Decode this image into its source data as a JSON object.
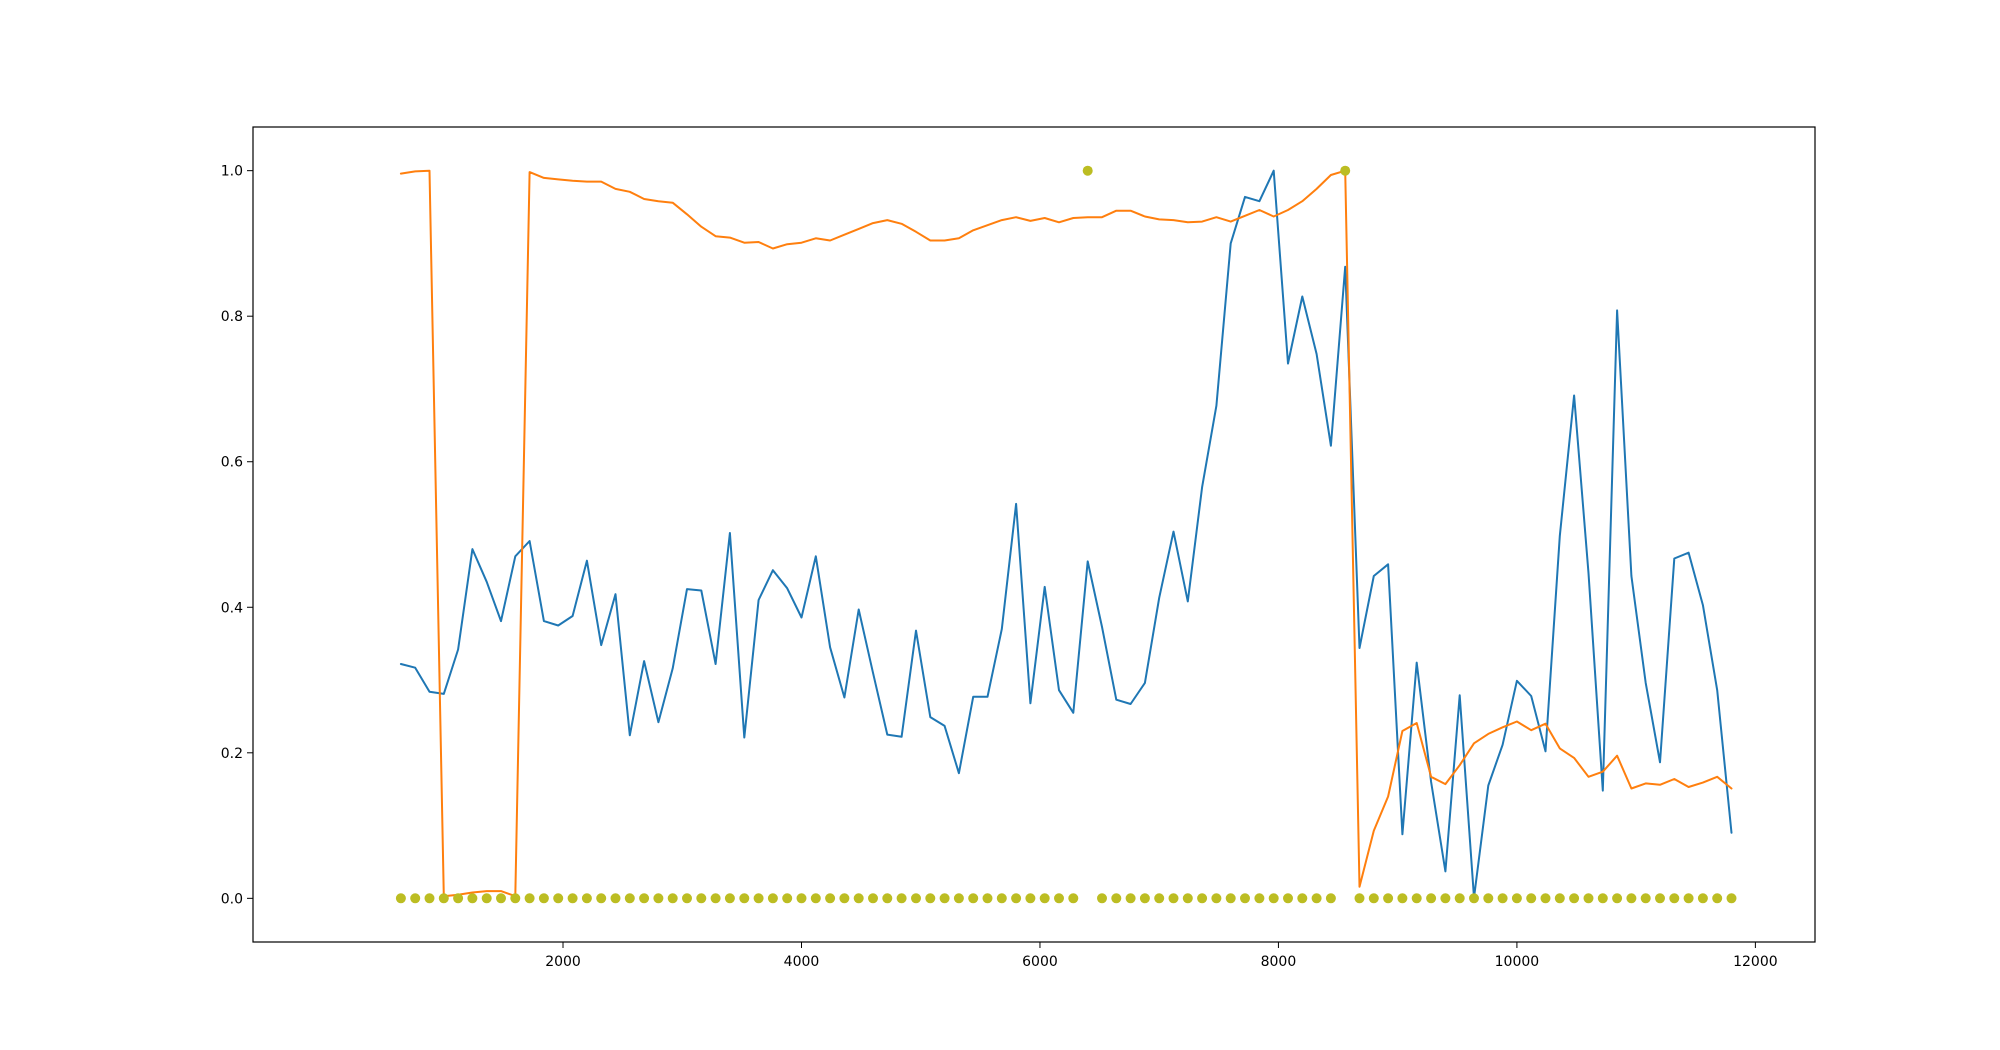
{
  "chart_data": {
    "type": "line",
    "title": "",
    "xlabel": "",
    "ylabel": "",
    "xlim": [
      -600,
      12500
    ],
    "ylim": [
      -0.06,
      1.06
    ],
    "grid": false,
    "x_ticks": [
      2000,
      4000,
      6000,
      8000,
      10000,
      12000
    ],
    "x_tick_labels": [
      "2000",
      "4000",
      "6000",
      "8000",
      "10000",
      "12000"
    ],
    "y_ticks": [
      0.0,
      0.2,
      0.4,
      0.6,
      0.8,
      1.0
    ],
    "y_tick_labels": [
      "0.0",
      "0.2",
      "0.4",
      "0.6",
      "0.8",
      "1.0"
    ],
    "x": [
      640,
      760,
      880,
      1000,
      1120,
      1240,
      1360,
      1480,
      1600,
      1720,
      1840,
      1960,
      2080,
      2200,
      2320,
      2440,
      2560,
      2680,
      2800,
      2920,
      3040,
      3160,
      3280,
      3400,
      3520,
      3640,
      3760,
      3880,
      4000,
      4120,
      4240,
      4360,
      4480,
      4600,
      4720,
      4840,
      4960,
      5080,
      5200,
      5320,
      5440,
      5560,
      5680,
      5800,
      5920,
      6040,
      6160,
      6280,
      6400,
      6520,
      6640,
      6760,
      6880,
      7000,
      7120,
      7240,
      7360,
      7480,
      7600,
      7720,
      7840,
      7960,
      8080,
      8200,
      8320,
      8440,
      8560,
      8680,
      8800,
      8920,
      9040,
      9160,
      9280,
      9400,
      9520,
      9640,
      9760,
      9880,
      10000,
      10120,
      10240,
      10360,
      10480,
      10600,
      10720,
      10840,
      10960,
      11080,
      11200,
      11320,
      11440,
      11560,
      11680,
      11800
    ],
    "series": [
      {
        "color": "#1f77b4",
        "style": "line",
        "values": [
          0.322,
          0.317,
          0.284,
          0.281,
          0.342,
          0.48,
          0.435,
          0.381,
          0.47,
          0.491,
          0.381,
          0.375,
          0.388,
          0.464,
          0.348,
          0.418,
          0.224,
          0.326,
          0.242,
          0.316,
          0.425,
          0.423,
          0.322,
          0.502,
          0.221,
          0.41,
          0.451,
          0.426,
          0.386,
          0.47,
          0.345,
          0.276,
          0.397,
          0.31,
          0.225,
          0.222,
          0.368,
          0.249,
          0.237,
          0.172,
          0.277,
          0.277,
          0.37,
          0.542,
          0.268,
          0.428,
          0.286,
          0.255,
          0.463,
          0.373,
          0.273,
          0.267,
          0.296,
          0.413,
          0.504,
          0.408,
          0.565,
          0.677,
          0.9,
          0.964,
          0.958,
          1.0,
          0.735,
          0.827,
          0.748,
          0.622,
          0.868,
          0.344,
          0.443,
          0.459,
          0.088,
          0.324,
          0.16,
          0.037,
          0.279,
          0.001,
          0.155,
          0.211,
          0.299,
          0.278,
          0.202,
          0.498,
          0.691,
          0.447,
          0.148,
          0.808,
          0.443,
          0.296,
          0.187,
          0.467,
          0.475,
          0.403,
          0.286,
          0.09
        ]
      },
      {
        "color": "#ff7f0e",
        "style": "line",
        "values": [
          0.996,
          0.999,
          1.0,
          0.003,
          0.005,
          0.008,
          0.01,
          0.01,
          0.003,
          0.998,
          0.99,
          0.988,
          0.986,
          0.985,
          0.985,
          0.975,
          0.971,
          0.961,
          0.958,
          0.956,
          0.94,
          0.923,
          0.91,
          0.908,
          0.901,
          0.902,
          0.893,
          0.899,
          0.901,
          0.907,
          0.904,
          0.912,
          0.92,
          0.928,
          0.932,
          0.927,
          0.916,
          0.904,
          0.904,
          0.907,
          0.918,
          0.925,
          0.932,
          0.936,
          0.931,
          0.935,
          0.929,
          0.935,
          0.936,
          0.936,
          0.945,
          0.945,
          0.937,
          0.933,
          0.932,
          0.929,
          0.93,
          0.936,
          0.93,
          0.938,
          0.946,
          0.937,
          0.946,
          0.958,
          0.975,
          0.994,
          1.0,
          0.016,
          0.093,
          0.14,
          0.23,
          0.241,
          0.167,
          0.157,
          0.183,
          0.213,
          0.226,
          0.235,
          0.243,
          0.231,
          0.24,
          0.206,
          0.193,
          0.167,
          0.174,
          0.196,
          0.151,
          0.158,
          0.156,
          0.164,
          0.153,
          0.159,
          0.167,
          0.151
        ]
      },
      {
        "color": "#bcbd22",
        "style": "markers",
        "values": [
          0,
          0,
          0,
          0,
          0,
          0,
          0,
          0,
          0,
          0,
          0,
          0,
          0,
          0,
          0,
          0,
          0,
          0,
          0,
          0,
          0,
          0,
          0,
          0,
          0,
          0,
          0,
          0,
          0,
          0,
          0,
          0,
          0,
          0,
          0,
          0,
          0,
          0,
          0,
          0,
          0,
          0,
          0,
          0,
          0,
          0,
          0,
          0,
          1,
          0,
          0,
          0,
          0,
          0,
          0,
          0,
          0,
          0,
          0,
          0,
          0,
          0,
          0,
          0,
          0,
          0,
          1,
          0,
          0,
          0,
          0,
          0,
          0,
          0,
          0,
          0,
          0,
          0,
          0,
          0,
          0,
          0,
          0,
          0,
          0,
          0,
          0,
          0,
          0,
          0,
          0,
          0,
          0,
          0
        ]
      }
    ]
  }
}
